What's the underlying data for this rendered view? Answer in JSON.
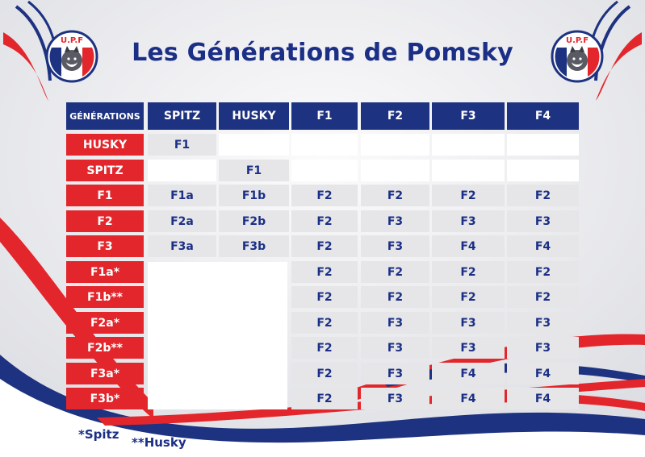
{
  "title": "Les Générations de Pomsky",
  "logo": {
    "letters": [
      "U",
      "P",
      "F"
    ],
    "icon": "husky-head-icon"
  },
  "colors": {
    "navy": "#1d3280",
    "red": "#e3262b",
    "cell_gray": "#e6e6e8",
    "white": "#ffffff"
  },
  "table": {
    "corner": "GÉNÉRATIONS",
    "columns": [
      "SPITZ",
      "HUSKY",
      "F1",
      "F2",
      "F3",
      "F4"
    ],
    "rows": [
      {
        "label": "HUSKY",
        "cells": [
          "F1",
          "",
          "",
          "",
          "",
          ""
        ]
      },
      {
        "label": "SPITZ",
        "cells": [
          "",
          "F1",
          "",
          "",
          "",
          ""
        ]
      },
      {
        "label": "F1",
        "cells": [
          "F1a",
          "F1b",
          "F2",
          "F2",
          "F2",
          "F2"
        ]
      },
      {
        "label": "F2",
        "cells": [
          "F2a",
          "F2b",
          "F2",
          "F3",
          "F3",
          "F3"
        ]
      },
      {
        "label": "F3",
        "cells": [
          "F3a",
          "F3b",
          "F2",
          "F3",
          "F4",
          "F4"
        ]
      },
      {
        "label": "F1a*",
        "cells": [
          "",
          "",
          "F2",
          "F2",
          "F2",
          "F2"
        ]
      },
      {
        "label": "F1b**",
        "cells": [
          "",
          "",
          "F2",
          "F2",
          "F2",
          "F2"
        ]
      },
      {
        "label": "F2a*",
        "cells": [
          "",
          "",
          "F2",
          "F3",
          "F3",
          "F3"
        ]
      },
      {
        "label": "F2b**",
        "cells": [
          "",
          "",
          "F2",
          "F3",
          "F3",
          "F3"
        ]
      },
      {
        "label": "F3a*",
        "cells": [
          "",
          "",
          "F2",
          "F3",
          "F4",
          "F4"
        ]
      },
      {
        "label": "F3b*",
        "cells": [
          "",
          "",
          "F2",
          "F3",
          "F4",
          "F4"
        ]
      }
    ]
  },
  "footnotes": {
    "spitz": "*Spitz",
    "husky": "**Husky"
  }
}
